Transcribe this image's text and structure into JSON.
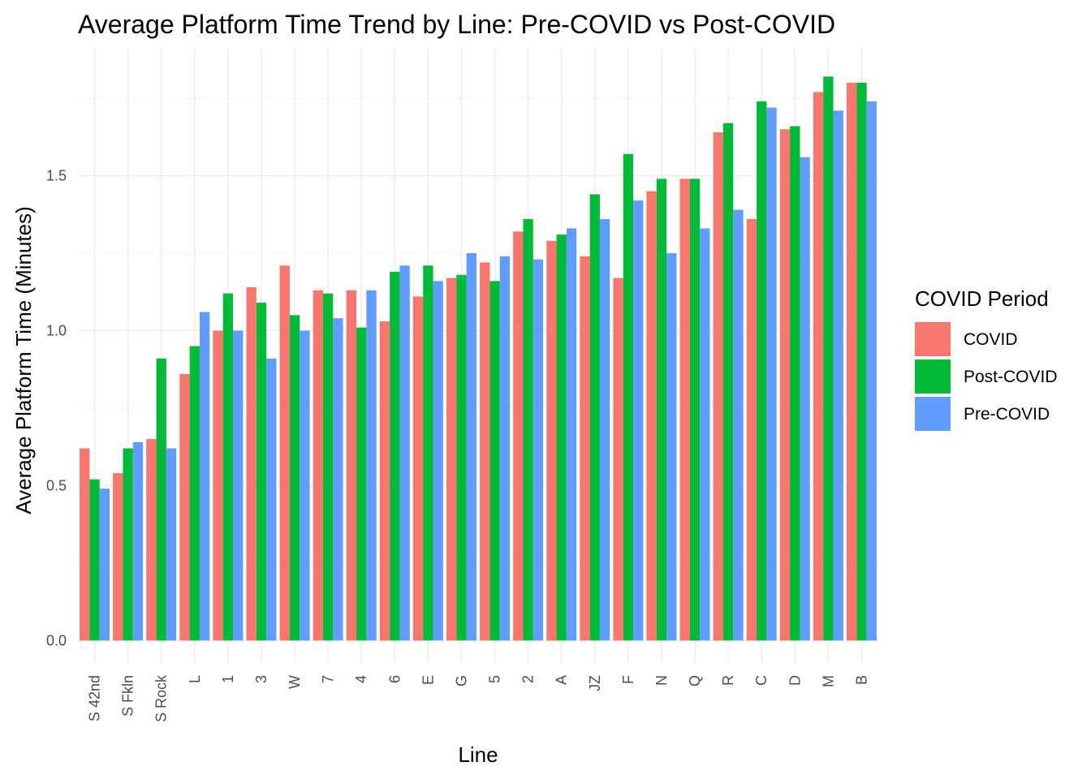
{
  "chart_data": {
    "type": "bar",
    "title": "Average Platform Time Trend by Line: Pre-COVID vs Post-COVID",
    "xlabel": "Line",
    "ylabel": "Average Platform Time (Minutes)",
    "ylim": [
      -0.07,
      1.91
    ],
    "yticks": [
      0.0,
      0.5,
      1.0,
      1.5
    ],
    "ytick_labels": [
      "0.0",
      "0.5",
      "1.0",
      "1.5"
    ],
    "grid": true,
    "legend": {
      "title": "COVID Period",
      "position": "right"
    },
    "categories": [
      "S 42nd",
      "S Fkln",
      "S Rock",
      "L",
      "1",
      "3",
      "W",
      "7",
      "4",
      "6",
      "E",
      "G",
      "5",
      "2",
      "A",
      "JZ",
      "F",
      "N",
      "Q",
      "R",
      "C",
      "D",
      "M",
      "B"
    ],
    "series": [
      {
        "name": "COVID",
        "color": "#F8766D",
        "values": [
          0.62,
          0.54,
          0.65,
          0.86,
          1.0,
          1.14,
          1.21,
          1.13,
          1.13,
          1.03,
          1.11,
          1.17,
          1.22,
          1.32,
          1.29,
          1.24,
          1.17,
          1.45,
          1.49,
          1.64,
          1.36,
          1.65,
          1.77,
          1.8
        ]
      },
      {
        "name": "Post-COVID",
        "color": "#00BA38",
        "values": [
          0.52,
          0.62,
          0.91,
          0.95,
          1.12,
          1.09,
          1.05,
          1.12,
          1.01,
          1.19,
          1.21,
          1.18,
          1.16,
          1.36,
          1.31,
          1.44,
          1.57,
          1.49,
          1.49,
          1.67,
          1.74,
          1.66,
          1.82,
          1.8
        ]
      },
      {
        "name": "Pre-COVID",
        "color": "#619CFF",
        "values": [
          0.49,
          0.64,
          0.62,
          1.06,
          1.0,
          0.91,
          1.0,
          1.04,
          1.13,
          1.21,
          1.16,
          1.25,
          1.24,
          1.23,
          1.33,
          1.36,
          1.42,
          1.25,
          1.33,
          1.39,
          1.72,
          1.56,
          1.71,
          1.74
        ]
      }
    ]
  }
}
